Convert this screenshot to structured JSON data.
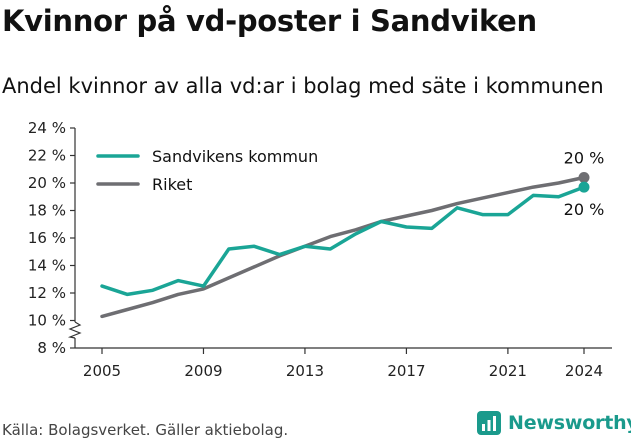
{
  "title": "Kvinnor på vd-poster i Sandviken",
  "subtitle": "Andel kvinnor av alla vd:ar i bolag med säte i kommunen",
  "source": "Källa: Bolagsverket. Gäller aktiebolag.",
  "brand": {
    "name": "Newsworthy",
    "icon": "newsworthy-logo-icon",
    "color": "#1a9a8c"
  },
  "chart_data": {
    "type": "line",
    "x": [
      2005,
      2006,
      2007,
      2008,
      2009,
      2010,
      2011,
      2012,
      2013,
      2014,
      2015,
      2016,
      2017,
      2018,
      2019,
      2020,
      2021,
      2022,
      2023,
      2024
    ],
    "x_ticks": [
      2005,
      2009,
      2013,
      2017,
      2021,
      2024
    ],
    "ylim": [
      8,
      24
    ],
    "y_ticks": [
      8,
      10,
      12,
      14,
      16,
      18,
      20,
      22,
      24
    ],
    "y_tick_suffix": " %",
    "axis_break": true,
    "grid": false,
    "legend_position": "top-left",
    "series": [
      {
        "name": "Sandvikens kommun",
        "color": "#1aa596",
        "values": [
          12.5,
          11.9,
          12.2,
          12.9,
          12.5,
          15.2,
          15.4,
          14.8,
          15.4,
          15.2,
          16.3,
          17.2,
          16.8,
          16.7,
          18.2,
          17.7,
          17.7,
          19.1,
          19.0,
          19.7
        ],
        "end_label": "20 %"
      },
      {
        "name": "Riket",
        "color": "#6e6e72",
        "values": [
          10.3,
          10.8,
          11.3,
          11.9,
          12.3,
          13.1,
          13.9,
          14.7,
          15.4,
          16.1,
          16.6,
          17.2,
          17.6,
          18.0,
          18.5,
          18.9,
          19.3,
          19.7,
          20.0,
          20.4
        ],
        "end_label": "20 %"
      }
    ]
  }
}
